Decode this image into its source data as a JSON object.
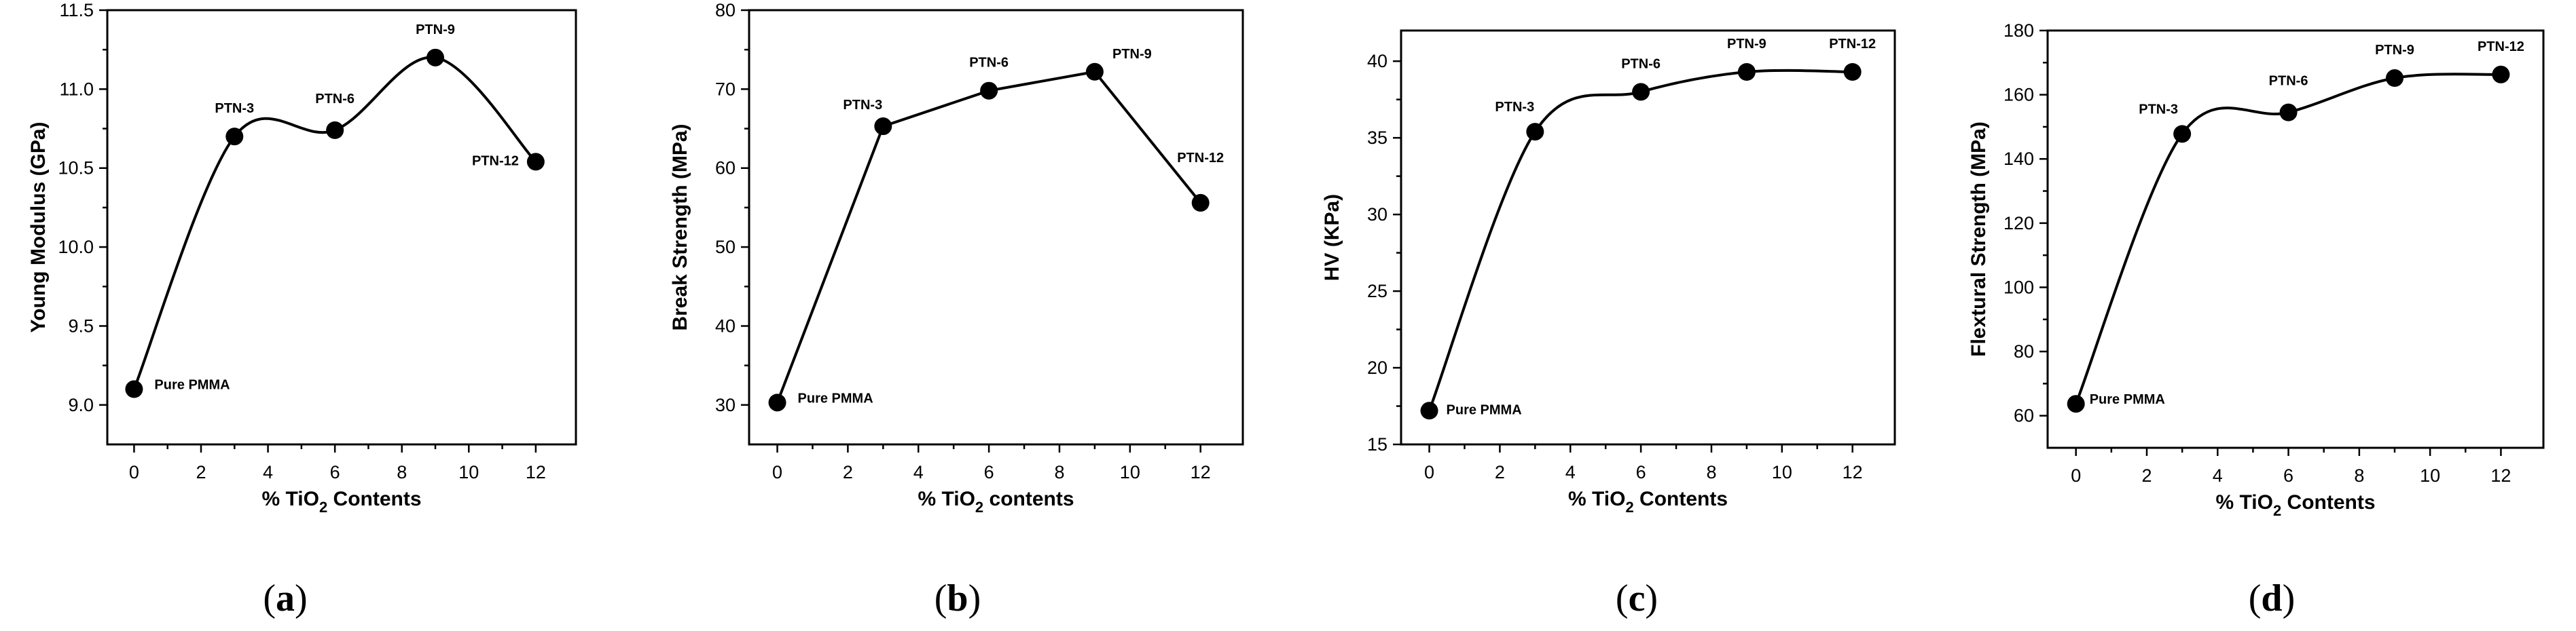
{
  "chart_data": [
    {
      "type": "line",
      "panel_label": "(a)",
      "caption_open": "(",
      "caption_letter": "a",
      "caption_close": ")",
      "xlabel_pre": "% TiO",
      "xlabel_sub": "2",
      "xlabel_post": " Contents",
      "ylabel": "Young Modulus (GPa)",
      "xlim": [
        -0.8,
        13.2
      ],
      "ylim": [
        8.75,
        11.5
      ],
      "xticks": [
        0,
        2,
        4,
        6,
        8,
        10,
        12
      ],
      "yticks": [
        9.0,
        9.5,
        10.0,
        10.5,
        11.0,
        11.5
      ],
      "ytick_labels": [
        "9.0",
        "9.5",
        "10.0",
        "10.5",
        "11.0",
        "11.5"
      ],
      "x": [
        0,
        3,
        6,
        9,
        12
      ],
      "y": [
        9.1,
        10.7,
        10.74,
        11.2,
        10.54
      ],
      "point_labels": [
        "Pure PMMA",
        "PTN-3",
        "PTN-6",
        "PTN-9",
        "PTN-12"
      ],
      "curve": "smooth"
    },
    {
      "type": "line",
      "panel_label": "(b)",
      "caption_open": "(",
      "caption_letter": "b",
      "caption_close": ")",
      "xlabel_pre": "% TiO",
      "xlabel_sub": "2",
      "xlabel_post": " contents",
      "ylabel": "Break Strength (MPa)",
      "xlim": [
        -0.8,
        13.2
      ],
      "ylim": [
        25,
        80
      ],
      "xticks": [
        0,
        2,
        4,
        6,
        8,
        10,
        12
      ],
      "yticks": [
        30,
        40,
        50,
        60,
        70,
        80
      ],
      "ytick_labels": [
        "30",
        "40",
        "50",
        "60",
        "70",
        "80"
      ],
      "x": [
        0,
        3,
        6,
        9,
        12
      ],
      "y": [
        30.3,
        65.3,
        69.8,
        72.2,
        55.6
      ],
      "point_labels": [
        "Pure PMMA",
        "PTN-3",
        "PTN-6",
        "PTN-9",
        "PTN-12"
      ],
      "curve": "straight"
    },
    {
      "type": "line",
      "panel_label": "(c)",
      "caption_open": "(",
      "caption_letter": "c",
      "caption_close": ")",
      "xlabel_pre": "% TiO",
      "xlabel_sub": "2",
      "xlabel_post": " Contents",
      "ylabel": "HV  (KPa)",
      "xlim": [
        -0.8,
        13.2
      ],
      "ylim": [
        15,
        42
      ],
      "xticks": [
        0,
        2,
        4,
        6,
        8,
        10,
        12
      ],
      "yticks": [
        15,
        20,
        25,
        30,
        35,
        40
      ],
      "ytick_labels": [
        "15",
        "20",
        "25",
        "30",
        "35",
        "40"
      ],
      "x": [
        0,
        3,
        6,
        9,
        12
      ],
      "y": [
        17.2,
        35.4,
        38.0,
        39.3,
        39.3
      ],
      "point_labels": [
        "Pure PMMA",
        "PTN-3",
        "PTN-6",
        "PTN-9",
        "PTN-12"
      ],
      "curve": "smooth"
    },
    {
      "type": "line",
      "panel_label": "(d)",
      "caption_open": "(",
      "caption_letter": "d",
      "caption_close": ")",
      "xlabel_pre": "% TiO",
      "xlabel_sub": "2",
      "xlabel_post": " Contents",
      "ylabel": "Flextural Strength (MPa)",
      "xlim": [
        -0.8,
        13.2
      ],
      "ylim": [
        50,
        180
      ],
      "xticks": [
        0,
        2,
        4,
        6,
        8,
        10,
        12
      ],
      "yticks": [
        60,
        80,
        100,
        120,
        140,
        160,
        180
      ],
      "ytick_labels": [
        "60",
        "80",
        "100",
        "120",
        "140",
        "160",
        "180"
      ],
      "x": [
        0,
        3,
        6,
        9,
        12
      ],
      "y": [
        63.7,
        147.8,
        154.5,
        165.2,
        166.3
      ],
      "point_labels": [
        "Pure PMMA",
        "PTN-3",
        "PTN-6",
        "PTN-9",
        "PTN-12"
      ],
      "curve": "smooth"
    }
  ]
}
